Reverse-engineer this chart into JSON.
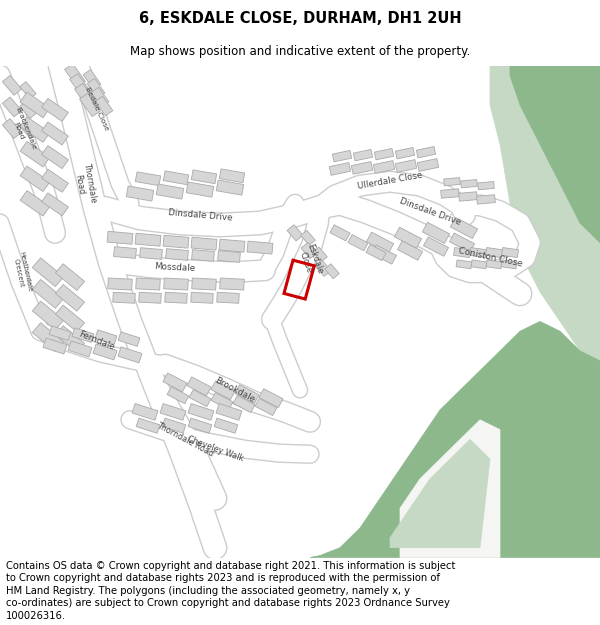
{
  "title": "6, ESKDALE CLOSE, DURHAM, DH1 2UH",
  "subtitle": "Map shows position and indicative extent of the property.",
  "copyright_text": "Contains OS data © Crown copyright and database right 2021. This information is subject to Crown copyright and database rights 2023 and is reproduced with the permission of HM Land Registry. The polygons (including the associated geometry, namely x, y co-ordinates) are subject to Crown copyright and database rights 2023 Ordnance Survey 100026316.",
  "bg_color": "#ffffff",
  "map_bg": "#f5f5f3",
  "road_color": "#ffffff",
  "road_edge": "#cccccc",
  "building_color": "#d6d6d6",
  "building_outline": "#aaaaaa",
  "green_color": "#8cb88c",
  "green_light": "#c5d9c5",
  "highlight_color": "#cc0000",
  "label_color": "#444444",
  "title_fontsize": 10.5,
  "subtitle_fontsize": 8.5,
  "copyright_fontsize": 7.2
}
